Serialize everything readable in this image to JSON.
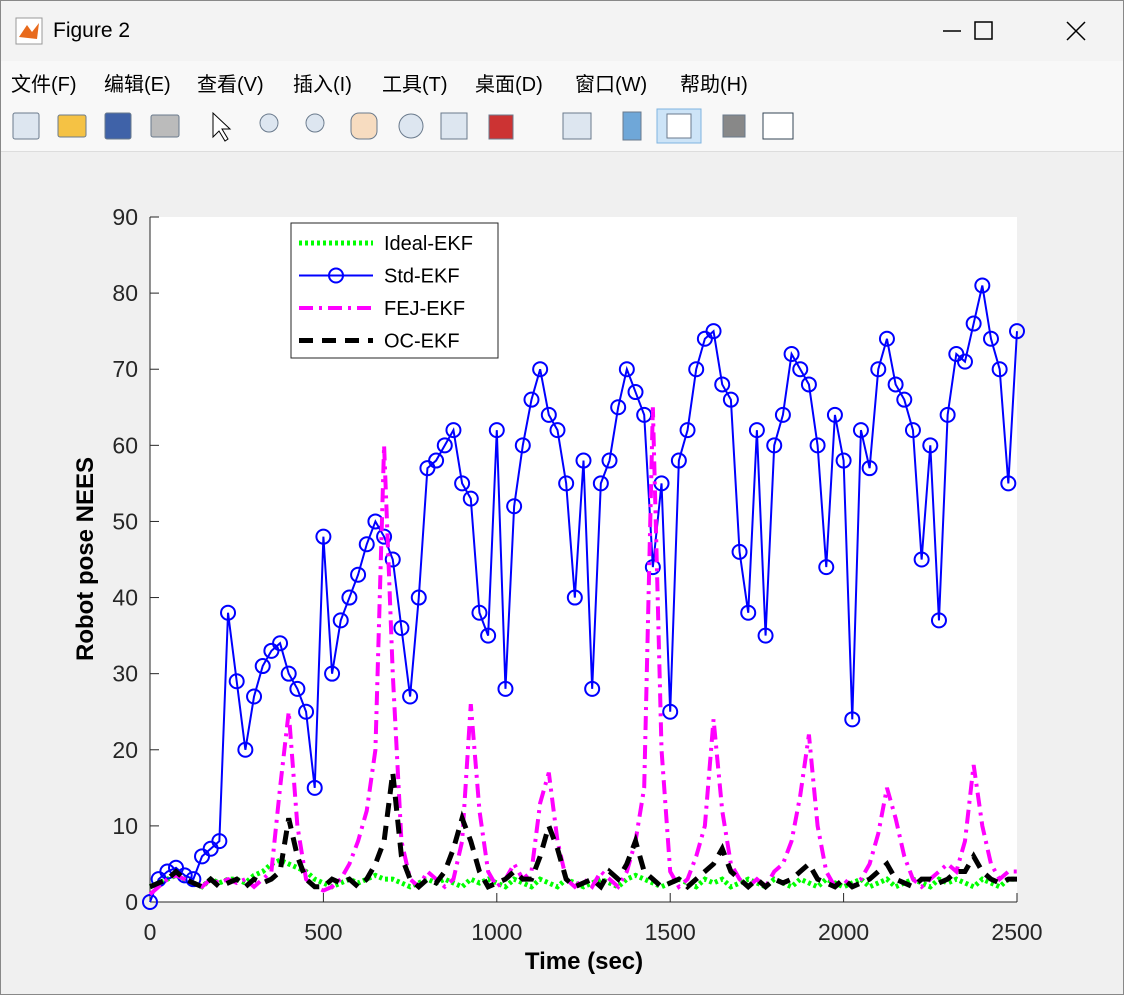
{
  "window": {
    "title": "Figure 2",
    "menu": [
      "文件(F)",
      "编辑(E)",
      "查看(V)",
      "插入(I)",
      "工具(T)",
      "桌面(D)",
      "窗口(W)",
      "帮助(H)"
    ]
  },
  "chart_data": {
    "type": "line",
    "xlabel": "Time (sec)",
    "ylabel": "Robot pose NEES",
    "xlim": [
      0,
      2500
    ],
    "xticks": [
      0,
      500,
      1000,
      1500,
      2000,
      2500
    ],
    "ylim": [
      0,
      90
    ],
    "yticks": [
      0,
      10,
      20,
      30,
      40,
      50,
      60,
      70,
      80,
      90
    ],
    "grid": false,
    "legend": "upper left",
    "x": [
      0,
      25,
      50,
      75,
      100,
      125,
      150,
      175,
      200,
      225,
      250,
      275,
      300,
      325,
      350,
      375,
      400,
      425,
      450,
      475,
      500,
      525,
      550,
      575,
      600,
      625,
      650,
      675,
      700,
      725,
      750,
      775,
      800,
      825,
      850,
      875,
      900,
      925,
      950,
      975,
      1000,
      1025,
      1050,
      1075,
      1100,
      1125,
      1150,
      1175,
      1200,
      1225,
      1250,
      1275,
      1300,
      1325,
      1350,
      1375,
      1400,
      1425,
      1450,
      1475,
      1500,
      1525,
      1550,
      1575,
      1600,
      1625,
      1650,
      1675,
      1700,
      1725,
      1750,
      1775,
      1800,
      1825,
      1850,
      1875,
      1900,
      1925,
      1950,
      1975,
      2000,
      2025,
      2050,
      2075,
      2100,
      2125,
      2150,
      2175,
      2200,
      2225,
      2250,
      2275,
      2300,
      2325,
      2350,
      2375,
      2400,
      2425,
      2450,
      2475,
      2500
    ],
    "series": [
      {
        "name": "Ideal-EKF",
        "color": "#00ff00",
        "dash": "dotted",
        "marker": "none",
        "values": [
          2,
          2.5,
          3,
          3.5,
          3,
          2.5,
          2,
          3,
          2.5,
          3,
          3,
          2.5,
          3.5,
          4,
          5,
          5.5,
          5,
          4.5,
          4,
          3,
          2.5,
          2,
          2.5,
          3,
          2.5,
          3,
          3.5,
          3,
          3,
          2.5,
          2,
          2.5,
          3,
          2.5,
          3,
          2.5,
          2,
          3,
          2.5,
          3,
          2.5,
          2,
          3,
          2.5,
          2,
          3,
          2.5,
          2,
          3,
          2.5,
          2,
          2.5,
          3,
          2.5,
          2,
          3,
          3.5,
          3,
          2.5,
          2,
          2.5,
          3,
          2.5,
          2,
          3,
          2.5,
          3,
          2,
          2.5,
          3,
          2.5,
          2,
          3,
          2.5,
          2,
          3,
          2.5,
          2,
          3,
          2.5,
          2,
          2.5,
          3,
          2,
          2.5,
          3,
          2,
          2.5,
          3,
          2.5,
          2,
          3,
          2.5,
          3,
          2.5,
          2,
          3,
          2.5,
          2,
          3,
          3
        ]
      },
      {
        "name": "Std-EKF",
        "color": "#0000ff",
        "dash": "solid",
        "marker": "circle",
        "values": [
          0,
          3,
          4,
          4.5,
          3.5,
          3,
          6,
          7,
          8,
          38,
          29,
          20,
          27,
          31,
          33,
          34,
          30,
          28,
          25,
          15,
          48,
          30,
          37,
          40,
          43,
          47,
          50,
          48,
          45,
          36,
          27,
          40,
          57,
          58,
          60,
          62,
          55,
          53,
          38,
          35,
          62,
          28,
          52,
          60,
          66,
          70,
          64,
          62,
          55,
          40,
          58,
          28,
          55,
          58,
          65,
          70,
          67,
          64,
          44,
          55,
          25,
          58,
          62,
          70,
          74,
          75,
          68,
          66,
          46,
          38,
          62,
          35,
          60,
          64,
          72,
          70,
          68,
          60,
          44,
          64,
          58,
          24,
          62,
          57,
          70,
          74,
          68,
          66,
          62,
          45,
          60,
          37,
          64,
          72,
          71,
          76,
          81,
          74,
          70,
          55,
          75
        ]
      },
      {
        "name": "FEJ-EKF",
        "color": "#ff00ff",
        "dash": "dashdot",
        "marker": "none",
        "values": [
          1,
          2,
          3,
          3.5,
          3,
          2.5,
          2,
          3,
          2.5,
          3,
          2.5,
          3,
          2,
          3,
          4,
          15,
          25,
          10,
          3,
          2,
          1.5,
          2,
          3,
          5,
          8,
          12,
          20,
          60,
          30,
          8,
          3,
          2,
          4,
          3,
          2,
          3,
          8,
          26,
          12,
          4,
          2,
          3,
          5,
          3,
          4,
          13,
          17,
          8,
          3,
          2,
          3,
          2,
          4,
          3,
          2,
          4,
          8,
          15,
          65,
          20,
          4,
          2,
          3,
          6,
          10,
          24,
          12,
          5,
          3,
          2,
          3,
          2,
          4,
          5,
          8,
          14,
          22,
          10,
          4,
          2,
          3,
          2,
          3,
          5,
          9,
          15,
          11,
          6,
          3,
          2,
          3,
          4,
          5,
          4,
          8,
          18,
          10,
          5,
          3,
          4,
          4
        ]
      },
      {
        "name": "OC-EKF",
        "color": "#000000",
        "dash": "dashed",
        "marker": "none",
        "values": [
          2,
          2.5,
          3,
          4,
          3,
          2.5,
          2,
          3,
          2,
          2.5,
          3,
          2,
          3,
          2.5,
          3,
          4,
          11,
          6,
          3,
          2,
          2,
          3,
          2.5,
          3,
          2,
          3,
          5,
          8,
          17,
          6,
          3,
          2,
          3,
          2.5,
          4,
          7,
          11,
          8,
          4,
          2,
          2.5,
          3,
          4,
          3,
          3,
          6,
          10,
          7,
          3,
          2,
          2.5,
          3,
          2,
          4,
          3,
          5,
          8,
          4,
          3,
          2,
          2.5,
          3,
          2,
          3,
          4,
          5,
          7,
          4,
          3,
          2,
          3,
          2,
          3,
          2.5,
          3,
          4,
          5,
          3,
          2.5,
          2,
          3,
          2,
          2.5,
          3,
          4,
          5,
          3,
          2.5,
          2,
          3,
          3,
          2.5,
          3,
          4,
          4,
          6,
          4,
          3,
          2.5,
          3,
          3
        ]
      }
    ]
  }
}
